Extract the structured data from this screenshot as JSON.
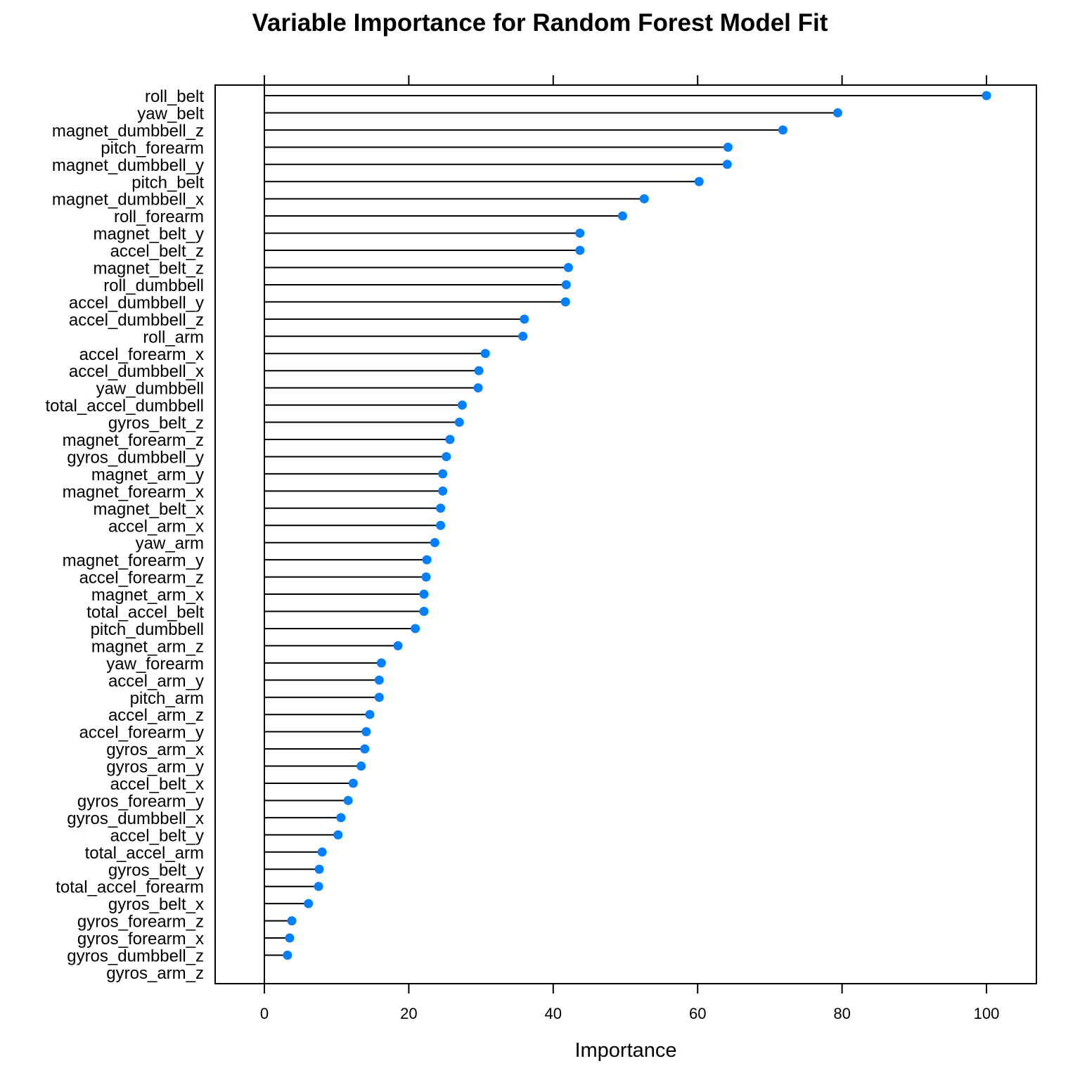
{
  "chart_data": {
    "type": "dot",
    "title": "Variable Importance for Random Forest Model Fit",
    "xlabel": "Importance",
    "ylabel": "",
    "xlim": [
      -7,
      107
    ],
    "xticks": [
      0,
      20,
      40,
      60,
      80,
      100
    ],
    "grid": false,
    "dot_color": "#0080ff",
    "categories": [
      "roll_belt",
      "yaw_belt",
      "magnet_dumbbell_z",
      "pitch_forearm",
      "magnet_dumbbell_y",
      "pitch_belt",
      "magnet_dumbbell_x",
      "roll_forearm",
      "magnet_belt_y",
      "accel_belt_z",
      "magnet_belt_z",
      "roll_dumbbell",
      "accel_dumbbell_y",
      "accel_dumbbell_z",
      "roll_arm",
      "accel_forearm_x",
      "accel_dumbbell_x",
      "yaw_dumbbell",
      "total_accel_dumbbell",
      "gyros_belt_z",
      "magnet_forearm_z",
      "gyros_dumbbell_y",
      "magnet_arm_y",
      "magnet_forearm_x",
      "magnet_belt_x",
      "accel_arm_x",
      "yaw_arm",
      "magnet_forearm_y",
      "accel_forearm_z",
      "magnet_arm_x",
      "total_accel_belt",
      "pitch_dumbbell",
      "magnet_arm_z",
      "yaw_forearm",
      "accel_arm_y",
      "pitch_arm",
      "accel_arm_z",
      "accel_forearm_y",
      "gyros_arm_x",
      "gyros_arm_y",
      "accel_belt_x",
      "gyros_forearm_y",
      "gyros_dumbbell_x",
      "accel_belt_y",
      "total_accel_arm",
      "gyros_belt_y",
      "total_accel_forearm",
      "gyros_belt_x",
      "gyros_forearm_z",
      "gyros_forearm_x",
      "gyros_dumbbell_z",
      "gyros_arm_z"
    ],
    "values": [
      100,
      79.4,
      71.8,
      64.2,
      64.1,
      60.2,
      52.6,
      49.6,
      43.7,
      43.7,
      42.1,
      41.8,
      41.7,
      36.0,
      35.8,
      30.6,
      29.7,
      29.6,
      27.4,
      27.0,
      25.7,
      25.2,
      24.7,
      24.7,
      24.4,
      24.4,
      23.6,
      22.5,
      22.4,
      22.1,
      22.1,
      20.9,
      18.5,
      16.2,
      15.9,
      15.9,
      14.6,
      14.1,
      13.9,
      13.4,
      12.3,
      11.6,
      10.6,
      10.2,
      8.0,
      7.6,
      7.5,
      6.1,
      3.8,
      3.5,
      3.2,
      0
    ]
  }
}
